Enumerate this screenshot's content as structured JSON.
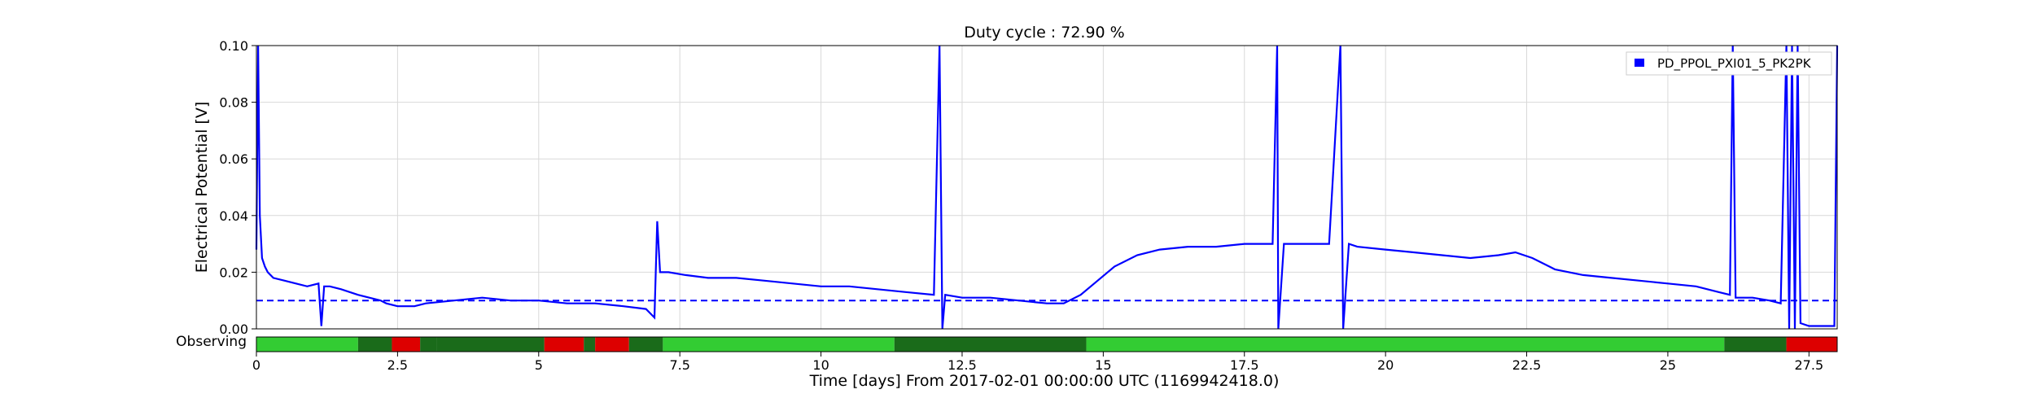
{
  "chart_data": {
    "type": "line",
    "title": "Duty cycle : 72.90 %",
    "xlabel": "Time [days] From 2017-02-01 00:00:00 UTC (1169942418.0)",
    "ylabel": "Electrical Potential [V]",
    "xlim": [
      0,
      28
    ],
    "ylim": [
      0,
      0.1
    ],
    "x_ticks": [
      "0",
      "2.5",
      "5",
      "7.5",
      "10",
      "12.5",
      "15",
      "17.5",
      "20",
      "22.5",
      "25",
      "27.5"
    ],
    "y_ticks": [
      "0.00",
      "0.02",
      "0.04",
      "0.06",
      "0.08",
      "0.10"
    ],
    "grid": true,
    "legend_position": "top-right",
    "series": [
      {
        "name": "PD_PPOL_PXI01_5_PK2PK",
        "color": "#0000ff",
        "x": [
          0.0,
          0.03,
          0.06,
          0.1,
          0.15,
          0.2,
          0.3,
          0.5,
          0.7,
          0.9,
          1.1,
          1.15,
          1.2,
          1.3,
          1.5,
          1.8,
          2.0,
          2.2,
          2.3,
          2.5,
          2.8,
          3.0,
          3.5,
          4.0,
          4.5,
          5.0,
          5.5,
          6.0,
          6.5,
          6.9,
          7.05,
          7.1,
          7.15,
          7.3,
          7.6,
          8.0,
          8.5,
          9.0,
          9.5,
          10.0,
          10.5,
          11.0,
          11.5,
          12.0,
          12.1,
          12.15,
          12.2,
          12.5,
          13.0,
          13.5,
          14.0,
          14.3,
          14.6,
          14.9,
          15.2,
          15.6,
          16.0,
          16.5,
          17.0,
          17.5,
          18.0,
          18.08,
          18.1,
          18.2,
          18.5,
          19.0,
          19.2,
          19.25,
          19.35,
          19.5,
          20.0,
          20.5,
          21.0,
          21.5,
          22.0,
          22.3,
          22.6,
          23.0,
          23.5,
          24.0,
          24.5,
          25.0,
          25.5,
          25.9,
          26.1,
          26.15,
          26.2,
          26.5,
          26.8,
          27.0,
          27.1,
          27.15,
          27.2,
          27.25,
          27.3,
          27.35,
          27.5,
          27.8,
          27.95,
          28.0
        ],
        "values": [
          0.028,
          0.1,
          0.04,
          0.025,
          0.022,
          0.02,
          0.018,
          0.017,
          0.016,
          0.015,
          0.016,
          0.001,
          0.015,
          0.015,
          0.014,
          0.012,
          0.011,
          0.01,
          0.009,
          0.008,
          0.008,
          0.009,
          0.01,
          0.011,
          0.01,
          0.01,
          0.009,
          0.009,
          0.008,
          0.007,
          0.004,
          0.038,
          0.02,
          0.02,
          0.019,
          0.018,
          0.018,
          0.017,
          0.016,
          0.015,
          0.015,
          0.014,
          0.013,
          0.012,
          0.1,
          0.0,
          0.012,
          0.011,
          0.011,
          0.01,
          0.009,
          0.009,
          0.012,
          0.017,
          0.022,
          0.026,
          0.028,
          0.029,
          0.029,
          0.03,
          0.03,
          0.1,
          0.0,
          0.03,
          0.03,
          0.03,
          0.1,
          0.0,
          0.03,
          0.029,
          0.028,
          0.027,
          0.026,
          0.025,
          0.026,
          0.027,
          0.025,
          0.021,
          0.019,
          0.018,
          0.017,
          0.016,
          0.015,
          0.013,
          0.012,
          0.1,
          0.011,
          0.011,
          0.01,
          0.009,
          0.1,
          0.0,
          0.1,
          0.0,
          0.1,
          0.002,
          0.001,
          0.001,
          0.001,
          0.1
        ]
      },
      {
        "name": "",
        "style": "dashed",
        "color": "#0000ff",
        "x": [
          0,
          28
        ],
        "values": [
          0.01,
          0.01
        ]
      }
    ],
    "observing_bar": {
      "label": "Observing",
      "colors": {
        "observing": "#33cc33",
        "dense": "#1a6b1a",
        "not_observing": "#dd0000"
      },
      "segments": [
        {
          "start": 0.0,
          "end": 1.8,
          "state": "observing"
        },
        {
          "start": 1.8,
          "end": 2.4,
          "state": "dense"
        },
        {
          "start": 2.4,
          "end": 2.9,
          "state": "not_observing"
        },
        {
          "start": 2.9,
          "end": 3.2,
          "state": "dense"
        },
        {
          "start": 3.2,
          "end": 5.1,
          "state": "dense"
        },
        {
          "start": 5.1,
          "end": 5.8,
          "state": "not_observing"
        },
        {
          "start": 5.8,
          "end": 6.0,
          "state": "dense"
        },
        {
          "start": 6.0,
          "end": 6.6,
          "state": "not_observing"
        },
        {
          "start": 6.6,
          "end": 7.2,
          "state": "dense"
        },
        {
          "start": 7.2,
          "end": 11.3,
          "state": "observing"
        },
        {
          "start": 11.3,
          "end": 14.7,
          "state": "dense"
        },
        {
          "start": 14.7,
          "end": 26.0,
          "state": "observing"
        },
        {
          "start": 26.0,
          "end": 27.1,
          "state": "dense"
        },
        {
          "start": 27.1,
          "end": 28.0,
          "state": "not_observing"
        }
      ]
    }
  }
}
